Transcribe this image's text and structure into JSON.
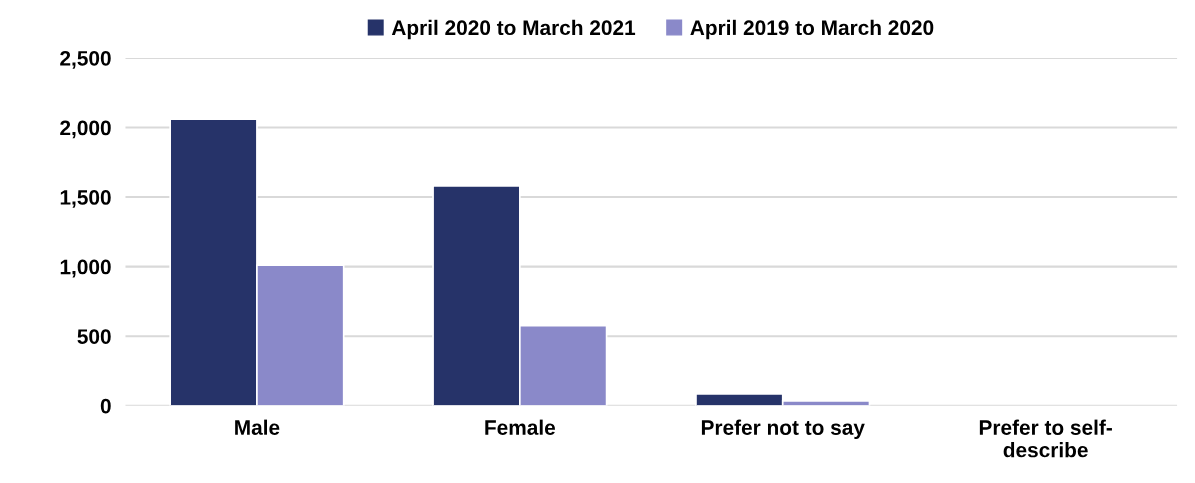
{
  "chart_data": {
    "type": "bar",
    "categories": [
      "Male",
      "Female",
      "Prefer not to say",
      "Prefer to self-\ndescribe"
    ],
    "series": [
      {
        "name": "April 2020 to March 2021",
        "color": "#263369",
        "values": [
          2060,
          1580,
          85,
          0
        ]
      },
      {
        "name": "April 2019 to March 2020",
        "color": "#8a89c9",
        "values": [
          1010,
          575,
          35,
          0
        ]
      }
    ],
    "ylim": [
      0,
      2500
    ],
    "yticks": [
      {
        "value": 0,
        "label": "0"
      },
      {
        "value": 500,
        "label": "500"
      },
      {
        "value": 1000,
        "label": "1,000"
      },
      {
        "value": 1500,
        "label": "1,500"
      },
      {
        "value": 2000,
        "label": "2,000"
      },
      {
        "value": 2500,
        "label": "2,500"
      }
    ],
    "grid": "y",
    "legend": "top"
  }
}
